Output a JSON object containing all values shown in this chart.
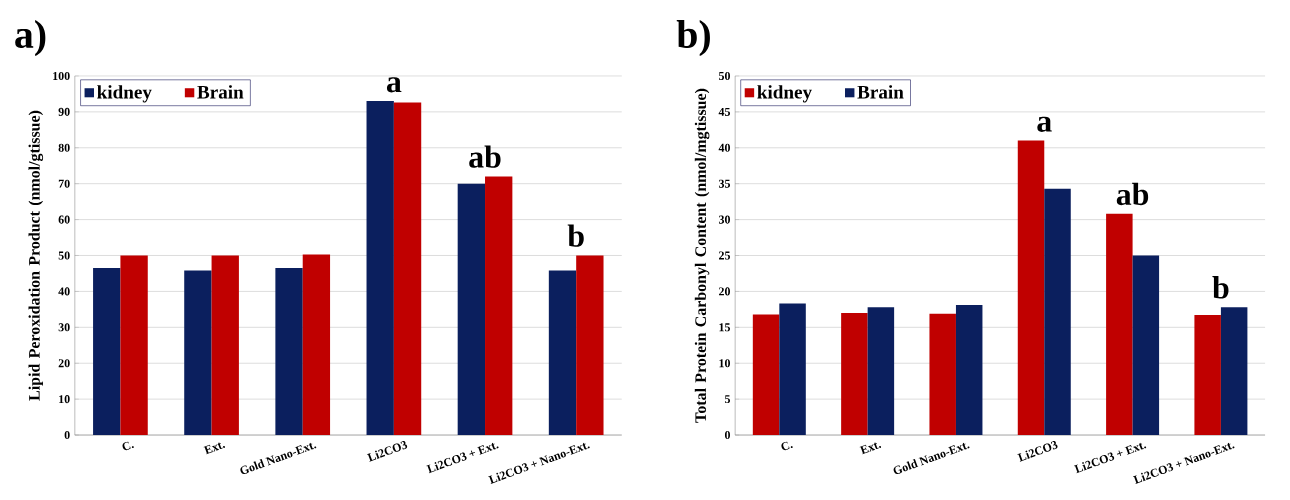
{
  "chart_data": [
    {
      "type": "bar",
      "title": "a)",
      "ylabel": "Lipid Peroxidation Product (nmol/gtissue)",
      "categories": [
        "C.",
        "Ext.",
        "Gold Nano-Ext.",
        "Li2CO3",
        "Li2CO3 + Ext.",
        "Li2CO3 + Nano-Ext."
      ],
      "series": [
        {
          "name": "kidney",
          "color": "#0b1f5e",
          "values": [
            46.5,
            45.8,
            46.5,
            93,
            70,
            45.8
          ]
        },
        {
          "name": "Brain",
          "color": "#c00000",
          "values": [
            50,
            50,
            50.3,
            92.6,
            72,
            50
          ]
        }
      ],
      "ylim": [
        0,
        100
      ],
      "yticks": [
        0,
        10,
        20,
        30,
        40,
        50,
        60,
        70,
        80,
        90,
        100
      ],
      "grid": "y",
      "legend": "top left",
      "annotations": [
        "a",
        "ab",
        "b"
      ]
    },
    {
      "type": "bar",
      "title": "b)",
      "ylabel": "Total Protein Carbonyl Content (nmol/mgtissue)",
      "categories": [
        "C.",
        "Ext.",
        "Gold Nano-Ext.",
        "Li2CO3",
        "Li2CO3 + Ext.",
        "Li2CO3 + Nano-Ext."
      ],
      "series": [
        {
          "name": "kidney",
          "color": "#c00000",
          "values": [
            16.8,
            17.0,
            16.9,
            41,
            30.8,
            16.7
          ]
        },
        {
          "name": "Brain",
          "color": "#0b1f5e",
          "values": [
            18.3,
            17.8,
            18.1,
            34.3,
            25,
            17.8
          ]
        }
      ],
      "ylim": [
        0,
        50
      ],
      "yticks": [
        0,
        5,
        10,
        15,
        20,
        25,
        30,
        35,
        40,
        45,
        50
      ],
      "grid": "y",
      "legend": "top left",
      "annotations": [
        "a",
        "ab",
        "b"
      ]
    }
  ]
}
